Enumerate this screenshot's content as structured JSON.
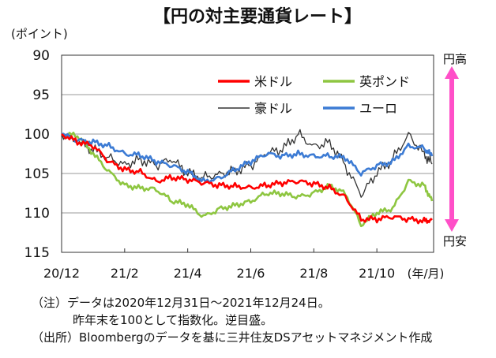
{
  "chart_data": {
    "type": "line",
    "title": "【円の対主要通貨レート】",
    "ylabel": "(ポイント)",
    "xlabel": "(年/月)",
    "ylim": [
      90,
      115
    ],
    "y_inverted": true,
    "y_ticks": [
      "90",
      "95",
      "100",
      "105",
      "110",
      "115"
    ],
    "x_ticks": [
      "20/12",
      "21/2",
      "21/4",
      "21/6",
      "21/8",
      "21/10"
    ],
    "x_tick_positions": [
      0,
      2,
      4,
      6,
      8,
      10
    ],
    "x_range": [
      0,
      11.8
    ],
    "arrow_top_label": "円高",
    "arrow_bottom_label": "円安",
    "x": [
      0,
      0.5,
      1,
      1.5,
      2,
      2.5,
      3,
      3.5,
      4,
      4.5,
      5,
      5.5,
      6,
      6.5,
      7,
      7.5,
      8,
      8.5,
      9,
      9.5,
      10,
      10.5,
      11,
      11.5,
      11.75
    ],
    "series": [
      {
        "name": "米ドル",
        "color": "#ff0000",
        "values": [
          100.0,
          101.0,
          101.5,
          103.5,
          104.5,
          104.8,
          106.0,
          105.5,
          105.8,
          106.2,
          106.5,
          106.6,
          106.8,
          106.5,
          106.2,
          106.0,
          106.3,
          106.8,
          108.0,
          110.8,
          110.8,
          110.5,
          110.8,
          111.0,
          110.9
        ]
      },
      {
        "name": "英ポンド",
        "color": "#8ec641",
        "values": [
          100.0,
          100.2,
          102.5,
          104.8,
          106.5,
          106.8,
          107.0,
          108.5,
          109.0,
          110.5,
          109.5,
          109.0,
          108.5,
          107.5,
          107.6,
          108.0,
          107.5,
          106.5,
          107.5,
          111.5,
          110.0,
          109.5,
          106.0,
          106.5,
          108.5
        ]
      },
      {
        "name": "豪ドル",
        "color": "#333333",
        "values": [
          100.0,
          101.0,
          102.0,
          103.0,
          103.8,
          103.2,
          104.0,
          103.3,
          105.0,
          105.5,
          105.0,
          104.6,
          104.0,
          102.5,
          102.0,
          100.0,
          101.5,
          101.0,
          104.0,
          107.8,
          105.0,
          103.2,
          100.0,
          102.5,
          103.8
        ]
      },
      {
        "name": "ユーロ",
        "color": "#3c7bd4",
        "values": [
          100.0,
          100.8,
          101.0,
          101.5,
          102.5,
          102.7,
          103.5,
          104.0,
          104.8,
          106.0,
          105.6,
          104.5,
          103.5,
          102.5,
          102.8,
          102.5,
          102.8,
          102.8,
          103.0,
          105.0,
          104.0,
          103.5,
          101.5,
          101.8,
          102.8
        ]
      }
    ]
  },
  "notes": {
    "line1": "（注）データは2020年12月31日～2021年12月24日。",
    "line2": "昨年末を100として指数化。逆目盛。",
    "line3": "（出所）Bloombergのデータを基に三井住友DSアセットマネジメント作成"
  }
}
